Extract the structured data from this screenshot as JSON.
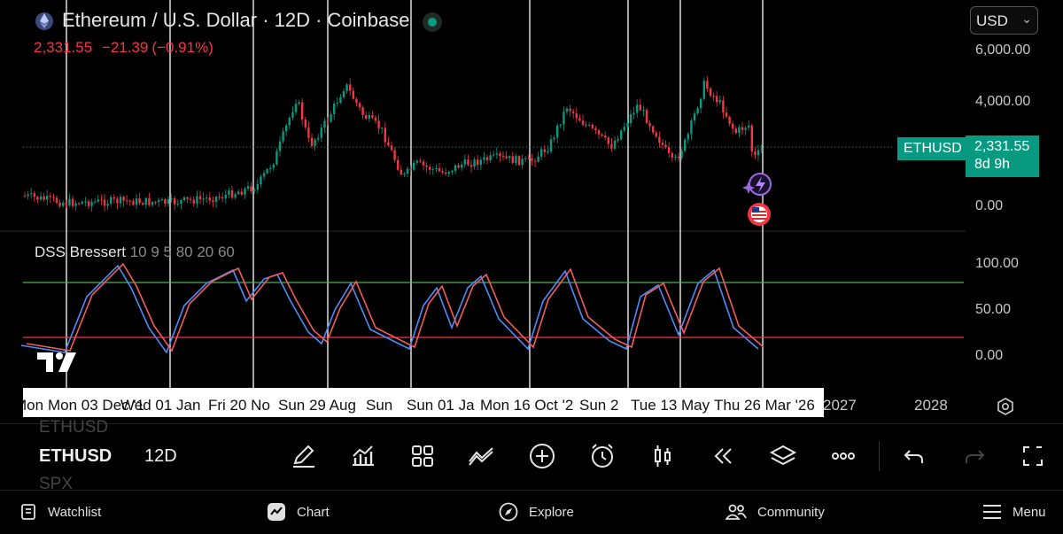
{
  "header": {
    "title": "Ethereum / U.S. Dollar · 12D · Coinbase",
    "last_price": "2,331.55",
    "change": "−21.39",
    "change_pct": "(−0.91%)",
    "currency": "USD"
  },
  "price_scale": {
    "ticks": [
      "6,000.00",
      "4,000.00",
      "0.00"
    ],
    "symbol_tag": "ETHUSD",
    "current_price": "2,331.55",
    "countdown": "8d 9h",
    "up_color": "#089981",
    "down_color": "#f23645"
  },
  "indicator": {
    "name": "DSS Bressert",
    "params": "10 9 5 80 20 60",
    "ticks": [
      "100.00",
      "50.00",
      "0.00"
    ],
    "upper_level": 80,
    "lower_level": 20,
    "fast_color": "#2962ff",
    "slow_color": "#f23645"
  },
  "time_axis": {
    "labels": [
      "Mon 03 Dec '1",
      "Wed 01 Jan",
      "Fri 20 No",
      "Sun 29 Aug",
      "Sun",
      "Sun 01 Ja",
      "Mon 16 Oct '2",
      "Sun 2",
      "Tue 13 May",
      "Thu 26 Mar '26"
    ],
    "years": [
      "2027",
      "2028"
    ],
    "prefix": "Mon"
  },
  "toolbar": {
    "symbol": "ETHUSD",
    "timeframe": "12D",
    "ghost_above": "ETHUSD",
    "ghost_below": "SPX",
    "tools": [
      "draw-icon",
      "indicators-icon",
      "layouts-icon",
      "compare-icon",
      "add-icon",
      "alert-icon",
      "chart-type-icon",
      "replay-icon",
      "layers-icon",
      "more-icon",
      "undo-icon",
      "redo-icon",
      "fullscreen-icon"
    ]
  },
  "bottom_nav": [
    {
      "label": "Watchlist",
      "icon": "watchlist-icon"
    },
    {
      "label": "Chart",
      "icon": "chart-icon"
    },
    {
      "label": "Explore",
      "icon": "explore-icon"
    },
    {
      "label": "Community",
      "icon": "community-icon"
    },
    {
      "label": "Menu",
      "icon": "menu-icon"
    }
  ]
}
